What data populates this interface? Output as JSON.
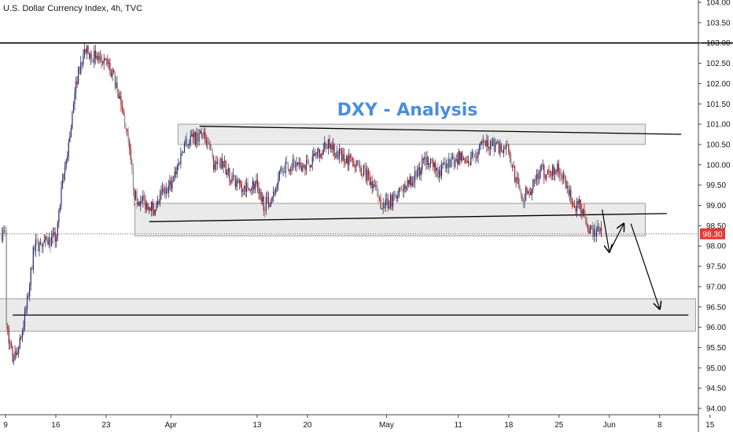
{
  "header": {
    "symbol_label": "U.S. Dollar Currency Index, 4h, TVC"
  },
  "annotation": {
    "title": "DXY - Analysis"
  },
  "price_tag": "98.30",
  "colors": {
    "up": "#2a2e6e",
    "down": "#a01818",
    "flat": "#888888",
    "zone_fill": "#d9d9d9",
    "zone_stroke": "#9e9e9e",
    "title": "#4b8de0",
    "price_line": "#e53935",
    "axis": "#434651"
  },
  "chart_data": {
    "type": "candlestick",
    "title": "DXY - Analysis",
    "symbol": "U.S. Dollar Currency Index, 4h, TVC",
    "ylim": [
      93.9,
      104.0
    ],
    "y_ticks": [
      "104.00",
      "103.50",
      "103.00",
      "102.50",
      "102.00",
      "101.50",
      "101.00",
      "100.50",
      "100.00",
      "99.50",
      "99.00",
      "98.50",
      "98.00",
      "97.50",
      "97.00",
      "96.50",
      "96.00",
      "95.50",
      "95.00",
      "94.50",
      "94.00"
    ],
    "x_ticks": [
      "9",
      "16",
      "23",
      "Apr",
      "13",
      "20",
      "May",
      "11",
      "18",
      "25",
      "Jun",
      "8",
      "15"
    ],
    "last_price": 98.3,
    "price_path": [
      [
        "2020-03-09",
        96.2
      ],
      [
        "2020-03-10",
        95.2
      ],
      [
        "2020-03-11",
        95.6
      ],
      [
        "2020-03-12",
        96.6
      ],
      [
        "2020-03-13",
        98.0
      ],
      [
        "2020-03-16",
        98.2
      ],
      [
        "2020-03-17",
        99.6
      ],
      [
        "2020-03-18",
        100.8
      ],
      [
        "2020-03-19",
        102.2
      ],
      [
        "2020-03-20",
        102.8
      ],
      [
        "2020-03-23",
        102.5
      ],
      [
        "2020-03-24",
        102.2
      ],
      [
        "2020-03-25",
        101.6
      ],
      [
        "2020-03-26",
        100.6
      ],
      [
        "2020-03-27",
        99.2
      ],
      [
        "2020-03-30",
        98.9
      ],
      [
        "2020-03-31",
        99.4
      ],
      [
        "2020-04-01",
        99.5
      ],
      [
        "2020-04-02",
        100.0
      ],
      [
        "2020-04-03",
        100.6
      ],
      [
        "2020-04-06",
        100.7
      ],
      [
        "2020-04-07",
        100.0
      ],
      [
        "2020-04-08",
        100.1
      ],
      [
        "2020-04-09",
        99.8
      ],
      [
        "2020-04-10",
        99.5
      ],
      [
        "2020-04-13",
        99.5
      ],
      [
        "2020-04-14",
        99.0
      ],
      [
        "2020-04-15",
        99.2
      ],
      [
        "2020-04-16",
        99.8
      ],
      [
        "2020-04-17",
        100.0
      ],
      [
        "2020-04-20",
        100.0
      ],
      [
        "2020-04-21",
        100.2
      ],
      [
        "2020-04-22",
        100.4
      ],
      [
        "2020-04-23",
        100.5
      ],
      [
        "2020-04-24",
        100.3
      ],
      [
        "2020-04-27",
        100.0
      ],
      [
        "2020-04-28",
        99.8
      ],
      [
        "2020-04-29",
        99.6
      ],
      [
        "2020-04-30",
        99.1
      ],
      [
        "2020-05-01",
        99.0
      ],
      [
        "2020-05-04",
        99.5
      ],
      [
        "2020-05-05",
        99.7
      ],
      [
        "2020-05-06",
        100.0
      ],
      [
        "2020-05-07",
        100.2
      ],
      [
        "2020-05-08",
        99.8
      ],
      [
        "2020-05-11",
        100.2
      ],
      [
        "2020-05-12",
        100.0
      ],
      [
        "2020-05-13",
        100.2
      ],
      [
        "2020-05-14",
        100.4
      ],
      [
        "2020-05-15",
        100.5
      ],
      [
        "2020-05-18",
        100.4
      ],
      [
        "2020-05-19",
        99.6
      ],
      [
        "2020-05-20",
        99.2
      ],
      [
        "2020-05-21",
        99.4
      ],
      [
        "2020-05-22",
        99.8
      ],
      [
        "2020-05-25",
        99.9
      ],
      [
        "2020-05-26",
        99.5
      ],
      [
        "2020-05-27",
        99.0
      ],
      [
        "2020-05-28",
        99.0
      ],
      [
        "2020-05-29",
        98.4
      ],
      [
        "2020-05-31",
        98.3
      ]
    ],
    "zones": [
      {
        "name": "resistance",
        "from": "2020-04-02",
        "to": "2020-06-06",
        "y": [
          100.5,
          101.0
        ]
      },
      {
        "name": "support",
        "from": "2020-03-27",
        "to": "2020-06-06",
        "y": [
          98.25,
          99.05
        ]
      },
      {
        "name": "demand",
        "from": "2020-03-08",
        "to": "2020-06-13",
        "y": [
          95.9,
          96.7
        ]
      }
    ],
    "lines": [
      {
        "name": "top",
        "from": [
          "2020-04-05",
          100.95
        ],
        "to": [
          "2020-06-11",
          100.75
        ]
      },
      {
        "name": "neckline",
        "from": [
          "2020-03-29",
          98.6
        ],
        "to": [
          "2020-06-09",
          98.8
        ]
      },
      {
        "name": "target",
        "from": [
          "2020-03-10",
          96.3
        ],
        "to": [
          "2020-06-12",
          96.3
        ]
      },
      {
        "name": "high",
        "from": [
          "2020-02-20",
          103.0
        ],
        "to": [
          "2020-06-23",
          103.0
        ]
      }
    ],
    "forecast_path": [
      [
        "2020-05-31",
        98.9
      ],
      [
        "2020-06-01",
        97.85
      ],
      [
        "2020-06-03",
        98.55
      ],
      [
        "2020-06-04",
        98.55
      ],
      [
        "2020-06-08",
        96.45
      ]
    ]
  }
}
